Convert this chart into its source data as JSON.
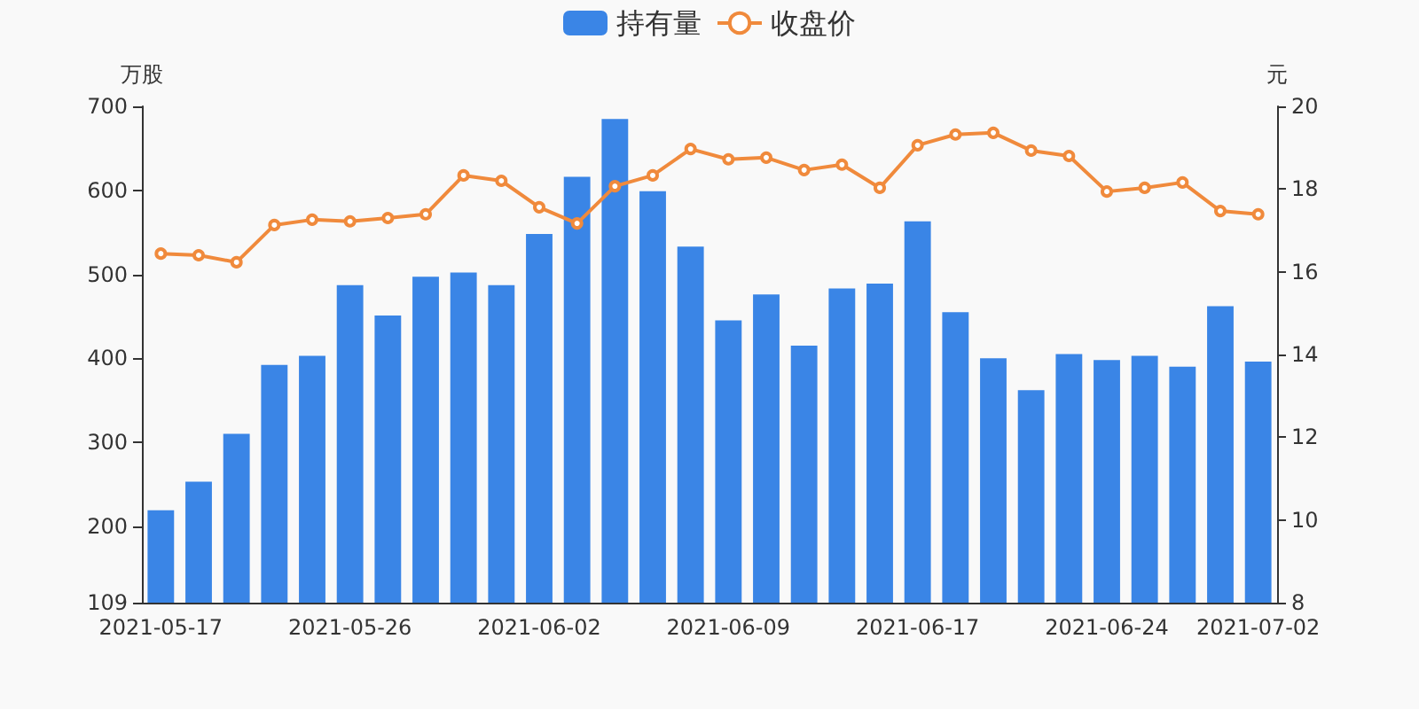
{
  "chart_data": {
    "type": "bar",
    "ylabel": "万股",
    "y2label": "元",
    "categories": [
      "2021-05-17",
      null,
      null,
      null,
      null,
      "2021-05-26",
      null,
      null,
      null,
      null,
      "2021-06-02",
      null,
      null,
      null,
      null,
      "2021-06-09",
      null,
      null,
      null,
      null,
      "2021-06-17",
      null,
      null,
      null,
      null,
      "2021-06-24",
      null,
      null,
      null,
      "2021-07-02"
    ],
    "series": [
      {
        "name": "持有量",
        "color": "#3a85e6",
        "values": [
          219,
          253,
          310,
          392,
          403,
          487,
          451,
          497,
          502,
          487,
          548,
          616,
          685,
          599,
          533,
          445,
          476,
          415,
          483,
          489,
          563,
          455,
          400,
          362,
          405,
          398,
          403,
          390,
          462,
          396
        ]
      },
      {
        "name": "收盘价",
        "type": "line",
        "axis": "y2",
        "color": "#f08a3c",
        "values": [
          16.44,
          16.4,
          16.23,
          17.13,
          17.26,
          17.22,
          17.3,
          17.39,
          18.33,
          18.2,
          17.56,
          17.17,
          18.07,
          18.33,
          18.97,
          18.72,
          18.76,
          18.46,
          18.59,
          18.03,
          19.06,
          19.32,
          19.36,
          18.93,
          18.8,
          17.94,
          18.03,
          18.16,
          17.47,
          17.39
        ]
      }
    ],
    "ylim": [
      109,
      700
    ],
    "yticks": [
      109,
      200,
      300,
      400,
      500,
      600,
      700
    ],
    "y2lim": [
      8,
      20
    ],
    "y2ticks": [
      8,
      10,
      12,
      14,
      16,
      18,
      20
    ],
    "grid": false,
    "legend": "top",
    "marker": "circle",
    "line_style": "solid"
  }
}
